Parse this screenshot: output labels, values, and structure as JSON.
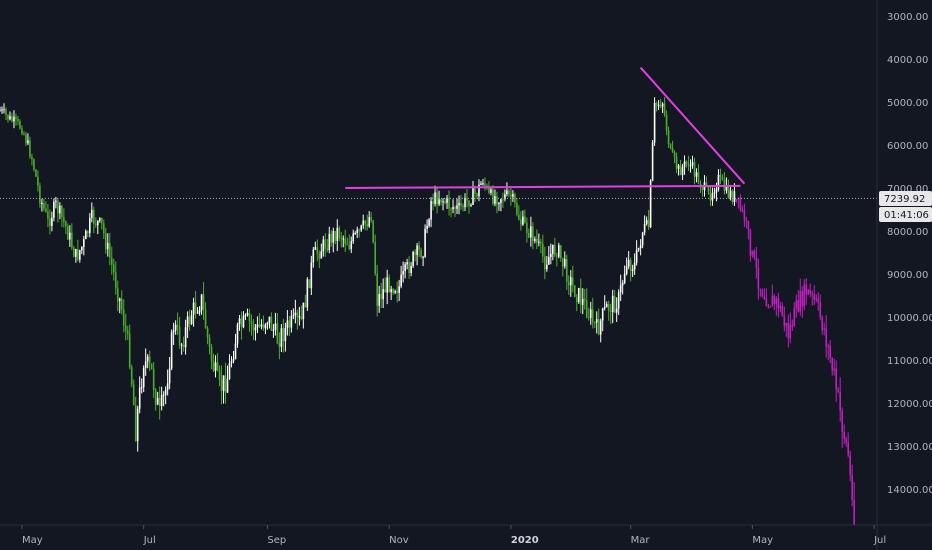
{
  "chart_data": {
    "type": "candlestick",
    "y_axis": {
      "scale": "inverted-linear",
      "range": [
        15000,
        2800
      ],
      "ticks": [
        "3000.00",
        "4000.00",
        "5000.00",
        "6000.00",
        "7000.00",
        "8000.00",
        "9000.00",
        "10000.00",
        "11000.00",
        "12000.00",
        "13000.00",
        "14000.00"
      ]
    },
    "x_axis": {
      "range": [
        "2019-04-20",
        "2020-07-31"
      ],
      "ticks": [
        {
          "date": "2019-05-01",
          "label": "May",
          "bold": false
        },
        {
          "date": "2019-07-01",
          "label": "Jul",
          "bold": false
        },
        {
          "date": "2019-09-01",
          "label": "Sep",
          "bold": false
        },
        {
          "date": "2019-11-01",
          "label": "Nov",
          "bold": false
        },
        {
          "date": "2020-01-01",
          "label": "2020",
          "bold": true
        },
        {
          "date": "2020-03-01",
          "label": "Mar",
          "bold": false
        },
        {
          "date": "2020-05-01",
          "label": "May",
          "bold": false
        },
        {
          "date": "2020-07-01",
          "label": "Jul",
          "bold": false
        }
      ]
    },
    "current_price": {
      "value": 7239.92,
      "label": "7239.92",
      "countdown": "01:41:06"
    },
    "series": [
      {
        "style": "green-white-candles",
        "points": [
          [
            "2019-04-20",
            5200
          ],
          [
            "2019-04-25",
            5400
          ],
          [
            "2019-05-01",
            5600
          ],
          [
            "2019-05-06",
            6300
          ],
          [
            "2019-05-10",
            7200
          ],
          [
            "2019-05-14",
            7800
          ],
          [
            "2019-05-18",
            7400
          ],
          [
            "2019-05-23",
            7900
          ],
          [
            "2019-05-28",
            8600
          ],
          [
            "2019-06-01",
            8300
          ],
          [
            "2019-06-05",
            7700
          ],
          [
            "2019-06-10",
            7900
          ],
          [
            "2019-06-15",
            8800
          ],
          [
            "2019-06-20",
            9800
          ],
          [
            "2019-06-24",
            10900
          ],
          [
            "2019-06-27",
            12600
          ],
          [
            "2019-07-01",
            11000
          ],
          [
            "2019-07-05",
            11300
          ],
          [
            "2019-07-09",
            12300
          ],
          [
            "2019-07-12",
            11700
          ],
          [
            "2019-07-16",
            10200
          ],
          [
            "2019-07-20",
            10600
          ],
          [
            "2019-07-25",
            9900
          ],
          [
            "2019-07-30",
            9600
          ],
          [
            "2019-08-03",
            10800
          ],
          [
            "2019-08-08",
            11700
          ],
          [
            "2019-08-12",
            11400
          ],
          [
            "2019-08-17",
            10300
          ],
          [
            "2019-08-22",
            10100
          ],
          [
            "2019-08-27",
            10300
          ],
          [
            "2019-09-01",
            10000
          ],
          [
            "2019-09-06",
            10500
          ],
          [
            "2019-09-12",
            10200
          ],
          [
            "2019-09-18",
            10100
          ],
          [
            "2019-09-24",
            8600
          ],
          [
            "2019-09-30",
            8300
          ],
          [
            "2019-10-06",
            8000
          ],
          [
            "2019-10-12",
            8300
          ],
          [
            "2019-10-18",
            8000
          ],
          [
            "2019-10-23",
            7600
          ],
          [
            "2019-10-26",
            9600
          ],
          [
            "2019-11-01",
            9200
          ],
          [
            "2019-11-06",
            9300
          ],
          [
            "2019-11-12",
            8700
          ],
          [
            "2019-11-18",
            8400
          ],
          [
            "2019-11-22",
            7300
          ],
          [
            "2019-11-26",
            7200
          ],
          [
            "2019-12-01",
            7400
          ],
          [
            "2019-12-06",
            7500
          ],
          [
            "2019-12-10",
            7300
          ],
          [
            "2019-12-15",
            7100
          ],
          [
            "2019-12-18",
            6800
          ],
          [
            "2019-12-21",
            7200
          ],
          [
            "2019-12-26",
            7200
          ],
          [
            "2020-01-01",
            7200
          ],
          [
            "2020-01-06",
            7800
          ],
          [
            "2020-01-12",
            8100
          ],
          [
            "2020-01-18",
            8700
          ],
          [
            "2020-01-24",
            8400
          ],
          [
            "2020-02-01",
            9300
          ],
          [
            "2020-02-08",
            9800
          ],
          [
            "2020-02-13",
            10300
          ],
          [
            "2020-02-18",
            9800
          ],
          [
            "2020-02-24",
            9600
          ],
          [
            "2020-02-28",
            8700
          ],
          [
            "2020-03-03",
            8800
          ],
          [
            "2020-03-07",
            8000
          ],
          [
            "2020-03-10",
            7900
          ],
          [
            "2020-03-13",
            5100
          ],
          [
            "2020-03-17",
            5000
          ],
          [
            "2020-03-21",
            6200
          ],
          [
            "2020-03-25",
            6600
          ],
          [
            "2020-03-30",
            6400
          ],
          [
            "2020-04-04",
            6800
          ],
          [
            "2020-04-09",
            7200
          ],
          [
            "2020-04-14",
            6800
          ],
          [
            "2020-04-18",
            7100
          ],
          [
            "2020-04-22",
            7200
          ]
        ]
      },
      {
        "style": "magenta-candles",
        "points": [
          [
            "2020-04-23",
            7300
          ],
          [
            "2020-04-27",
            7700
          ],
          [
            "2020-05-01",
            8600
          ],
          [
            "2020-05-05",
            9300
          ],
          [
            "2020-05-09",
            9600
          ],
          [
            "2020-05-14",
            9700
          ],
          [
            "2020-05-19",
            10400
          ],
          [
            "2020-05-24",
            9700
          ],
          [
            "2020-05-28",
            9400
          ],
          [
            "2020-06-02",
            9700
          ],
          [
            "2020-06-06",
            10300
          ],
          [
            "2020-06-11",
            11400
          ],
          [
            "2020-06-15",
            12500
          ],
          [
            "2020-06-18",
            13200
          ],
          [
            "2020-06-21",
            14900
          ]
        ]
      }
    ],
    "annotations": [
      {
        "type": "horizontal-segment",
        "color": "#e040e0",
        "from": [
          "2019-10-10",
          7000
        ],
        "to": [
          "2020-04-25",
          6950
        ]
      },
      {
        "type": "trend-line",
        "color": "#e040e0",
        "from": [
          "2020-03-06",
          4200
        ],
        "to": [
          "2020-04-27",
          6900
        ]
      },
      {
        "type": "horizontal-dotted",
        "color": "#b2b5be",
        "value": 7239.92
      }
    ],
    "colors": {
      "background": "#131722",
      "up": "#ffffff",
      "down": "#4caf2a",
      "projection": "#c020c0",
      "annotation": "#e040e0"
    }
  }
}
